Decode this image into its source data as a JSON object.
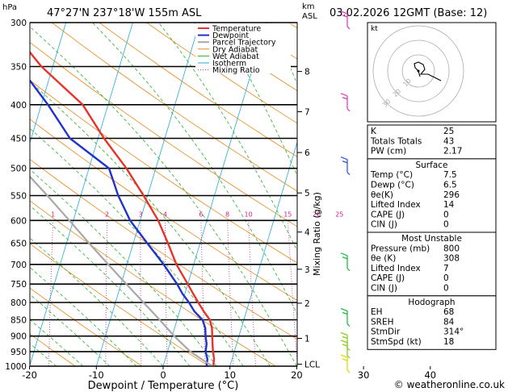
{
  "chart_data": {
    "type": "line",
    "title": "47°27'N  237°18'W  155m  ASL",
    "date_title": "03.02.2026  12GMT  (Base: 12)",
    "xlabel": "Dewpoint / Temperature (°C)",
    "ylabel": "hPa",
    "right_axis_label": "km\nASL",
    "mixing_ratio_axis_label": "Mixing Ratio (g/kg)",
    "xlim": [
      -35,
      40
    ],
    "ylim_hpa": [
      1000,
      300
    ],
    "x_ticks": [
      -30,
      -20,
      -10,
      0,
      10,
      20,
      30,
      40
    ],
    "pressure_levels": [
      300,
      350,
      400,
      450,
      500,
      550,
      600,
      650,
      700,
      750,
      800,
      850,
      900,
      950,
      1000
    ],
    "km_ticks": [
      {
        "label": "8",
        "p": 356
      },
      {
        "label": "7",
        "p": 410
      },
      {
        "label": "6",
        "p": 473
      },
      {
        "label": "5",
        "p": 545
      },
      {
        "label": "4",
        "p": 625
      },
      {
        "label": "3",
        "p": 712
      },
      {
        "label": "2",
        "p": 802
      },
      {
        "label": "1",
        "p": 907
      },
      {
        "label": "LCL",
        "p": 993
      }
    ],
    "mixing_ratio_values": [
      1,
      2,
      3,
      4,
      6,
      8,
      10,
      15,
      20,
      25
    ],
    "mixing_ratio_label_p": 595,
    "legend": [
      "Temperature",
      "Dewpoint",
      "Parcel Trajectory",
      "Dry Adiabat",
      "Wet Adiabat",
      "Isotherm",
      "Mixing Ratio"
    ],
    "series": [
      {
        "name": "Temperature",
        "color": "#e8322a",
        "points": [
          [
            1000,
            7.5
          ],
          [
            975,
            7.3
          ],
          [
            950,
            6.8
          ],
          [
            925,
            6.4
          ],
          [
            900,
            6.0
          ],
          [
            875,
            5.6
          ],
          [
            850,
            4.9
          ],
          [
            825,
            3.6
          ],
          [
            800,
            2.4
          ],
          [
            775,
            1.2
          ],
          [
            750,
            0.0
          ],
          [
            700,
            -2.6
          ],
          [
            650,
            -4.8
          ],
          [
            600,
            -7.3
          ],
          [
            550,
            -10.6
          ],
          [
            500,
            -14.4
          ],
          [
            450,
            -19.1
          ],
          [
            400,
            -23.8
          ],
          [
            350,
            -31.7
          ],
          [
            300,
            -39.0
          ]
        ]
      },
      {
        "name": "Dewpoint",
        "color": "#2233cc",
        "points": [
          [
            1000,
            6.5
          ],
          [
            975,
            6.3
          ],
          [
            950,
            5.7
          ],
          [
            925,
            5.5
          ],
          [
            900,
            5.0
          ],
          [
            875,
            4.6
          ],
          [
            850,
            3.8
          ],
          [
            825,
            2.2
          ],
          [
            800,
            1.0
          ],
          [
            775,
            -0.4
          ],
          [
            750,
            -1.6
          ],
          [
            700,
            -4.5
          ],
          [
            650,
            -7.9
          ],
          [
            600,
            -11.5
          ],
          [
            550,
            -14.4
          ],
          [
            500,
            -17.0
          ],
          [
            450,
            -24.2
          ],
          [
            400,
            -29.0
          ],
          [
            350,
            -35.0
          ],
          [
            300,
            -41.0
          ]
        ]
      },
      {
        "name": "Parcel Trajectory",
        "color": "#a8a8a8",
        "points": [
          [
            1000,
            7.5
          ],
          [
            993,
            6.8
          ],
          [
            950,
            3.4
          ],
          [
            900,
            0.3
          ],
          [
            850,
            -2.6
          ],
          [
            800,
            -5.8
          ],
          [
            750,
            -9.2
          ],
          [
            700,
            -12.8
          ],
          [
            650,
            -16.6
          ],
          [
            600,
            -20.6
          ],
          [
            550,
            -25.0
          ],
          [
            500,
            -30.0
          ],
          [
            450,
            -35.5
          ],
          [
            400,
            -41.5
          ],
          [
            350,
            -48.5
          ],
          [
            300,
            -56.5
          ]
        ]
      }
    ],
    "wind_barbs": [
      {
        "p": 300,
        "color": "#e040c0"
      },
      {
        "p": 400,
        "color": "#e040c0"
      },
      {
        "p": 500,
        "color": "#3355dd"
      },
      {
        "p": 700,
        "color": "#22bb44"
      },
      {
        "p": 850,
        "color": "#22bb44"
      },
      {
        "p": 925,
        "color": "#88cc22"
      },
      {
        "p": 950,
        "color": "#88cc22"
      },
      {
        "p": 1000,
        "color": "#dddd00"
      }
    ],
    "hodograph": {
      "label": "kt",
      "ring_labels": [
        "10",
        "20",
        "30"
      ]
    },
    "indices_table": {
      "rows": [
        {
          "label": "K",
          "value": "25"
        },
        {
          "label": "Totals Totals",
          "value": "43"
        },
        {
          "label": "PW (cm)",
          "value": "2.17"
        }
      ]
    },
    "surface_table": {
      "header": "Surface",
      "rows": [
        {
          "label": "Temp (°C)",
          "value": "7.5"
        },
        {
          "label": "Dewp (°C)",
          "value": "6.5"
        },
        {
          "label": "θe(K)",
          "value": "296"
        },
        {
          "label": "Lifted Index",
          "value": "14"
        },
        {
          "label": "CAPE (J)",
          "value": "0"
        },
        {
          "label": "CIN (J)",
          "value": "0"
        }
      ]
    },
    "unstable_table": {
      "header": "Most Unstable",
      "rows": [
        {
          "label": "Pressure (mb)",
          "value": "800"
        },
        {
          "label": "θe (K)",
          "value": "308"
        },
        {
          "label": "Lifted Index",
          "value": "7"
        },
        {
          "label": "CAPE (J)",
          "value": "0"
        },
        {
          "label": "CIN (J)",
          "value": "0"
        }
      ]
    },
    "hodograph_table": {
      "header": "Hodograph",
      "rows": [
        {
          "label": "EH",
          "value": "68"
        },
        {
          "label": "SREH",
          "value": "84"
        },
        {
          "label": "StmDir",
          "value": "314°"
        },
        {
          "label": "StmSpd (kt)",
          "value": "18"
        }
      ]
    },
    "copyright": "© weatheronline.co.uk"
  }
}
